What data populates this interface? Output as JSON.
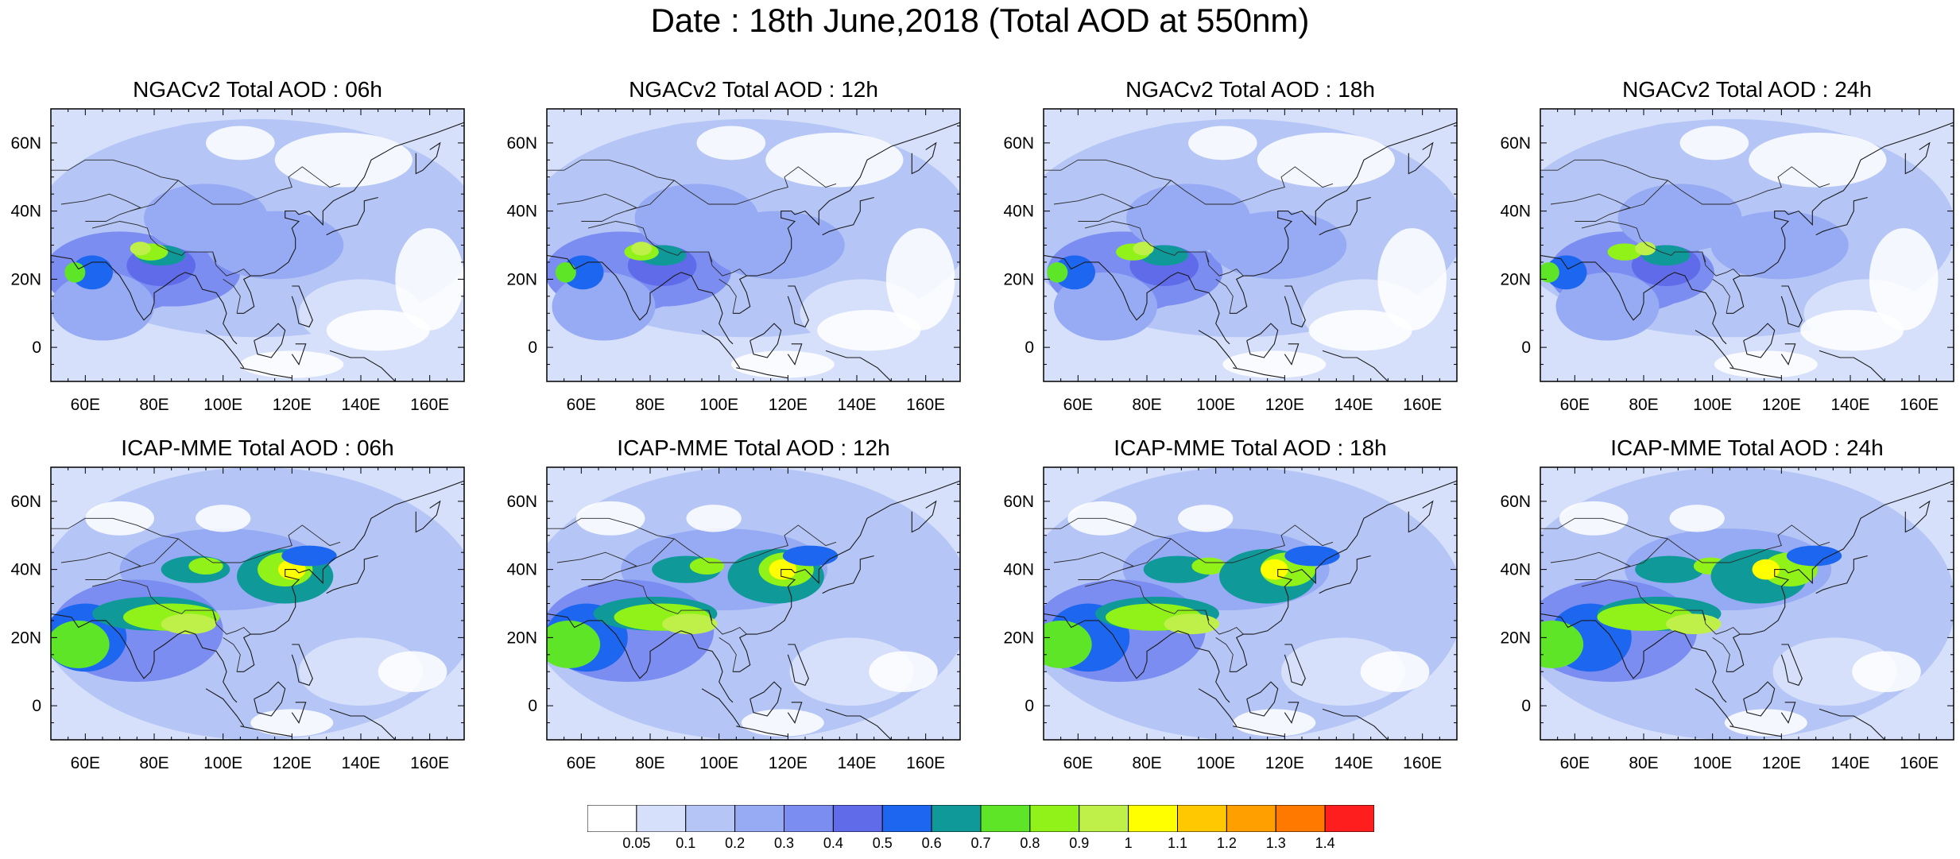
{
  "figure": {
    "title": "Date : 18th June,2018 (Total AOD at 550nm)"
  },
  "axes": {
    "lon_ticks": [
      "60E",
      "80E",
      "100E",
      "120E",
      "140E",
      "160E"
    ],
    "lat_ticks": [
      "60N",
      "40N",
      "20N",
      "0"
    ],
    "lon_range": [
      50,
      170
    ],
    "lat_range": [
      -10,
      70
    ]
  },
  "panels": [
    {
      "title": "NGACv2 Total AOD : 06h",
      "model": "NGACv2",
      "hour": 6
    },
    {
      "title": "NGACv2 Total AOD : 12h",
      "model": "NGACv2",
      "hour": 12
    },
    {
      "title": "NGACv2 Total AOD : 18h",
      "model": "NGACv2",
      "hour": 18
    },
    {
      "title": "NGACv2 Total AOD : 24h",
      "model": "NGACv2",
      "hour": 24
    },
    {
      "title": "ICAP-MME Total AOD : 06h",
      "model": "ICAP-MME",
      "hour": 6
    },
    {
      "title": "ICAP-MME Total AOD : 12h",
      "model": "ICAP-MME",
      "hour": 12
    },
    {
      "title": "ICAP-MME Total AOD : 18h",
      "model": "ICAP-MME",
      "hour": 18
    },
    {
      "title": "ICAP-MME Total AOD : 24h",
      "model": "ICAP-MME",
      "hour": 24
    }
  ],
  "colorbar": {
    "labels": [
      "0.05",
      "0.1",
      "0.2",
      "0.3",
      "0.4",
      "0.5",
      "0.6",
      "0.7",
      "0.8",
      "0.9",
      "1",
      "1.1",
      "1.2",
      "1.3",
      "1.4"
    ],
    "colors": [
      "#ffffff",
      "#d6e0fb",
      "#b5c6f6",
      "#96abf4",
      "#7c8df1",
      "#5f6be9",
      "#1c66f0",
      "#0f9999",
      "#5fe528",
      "#91f21a",
      "#bff04a",
      "#ffff00",
      "#ffc800",
      "#ffa000",
      "#ff7800",
      "#ff1e1e"
    ]
  }
}
